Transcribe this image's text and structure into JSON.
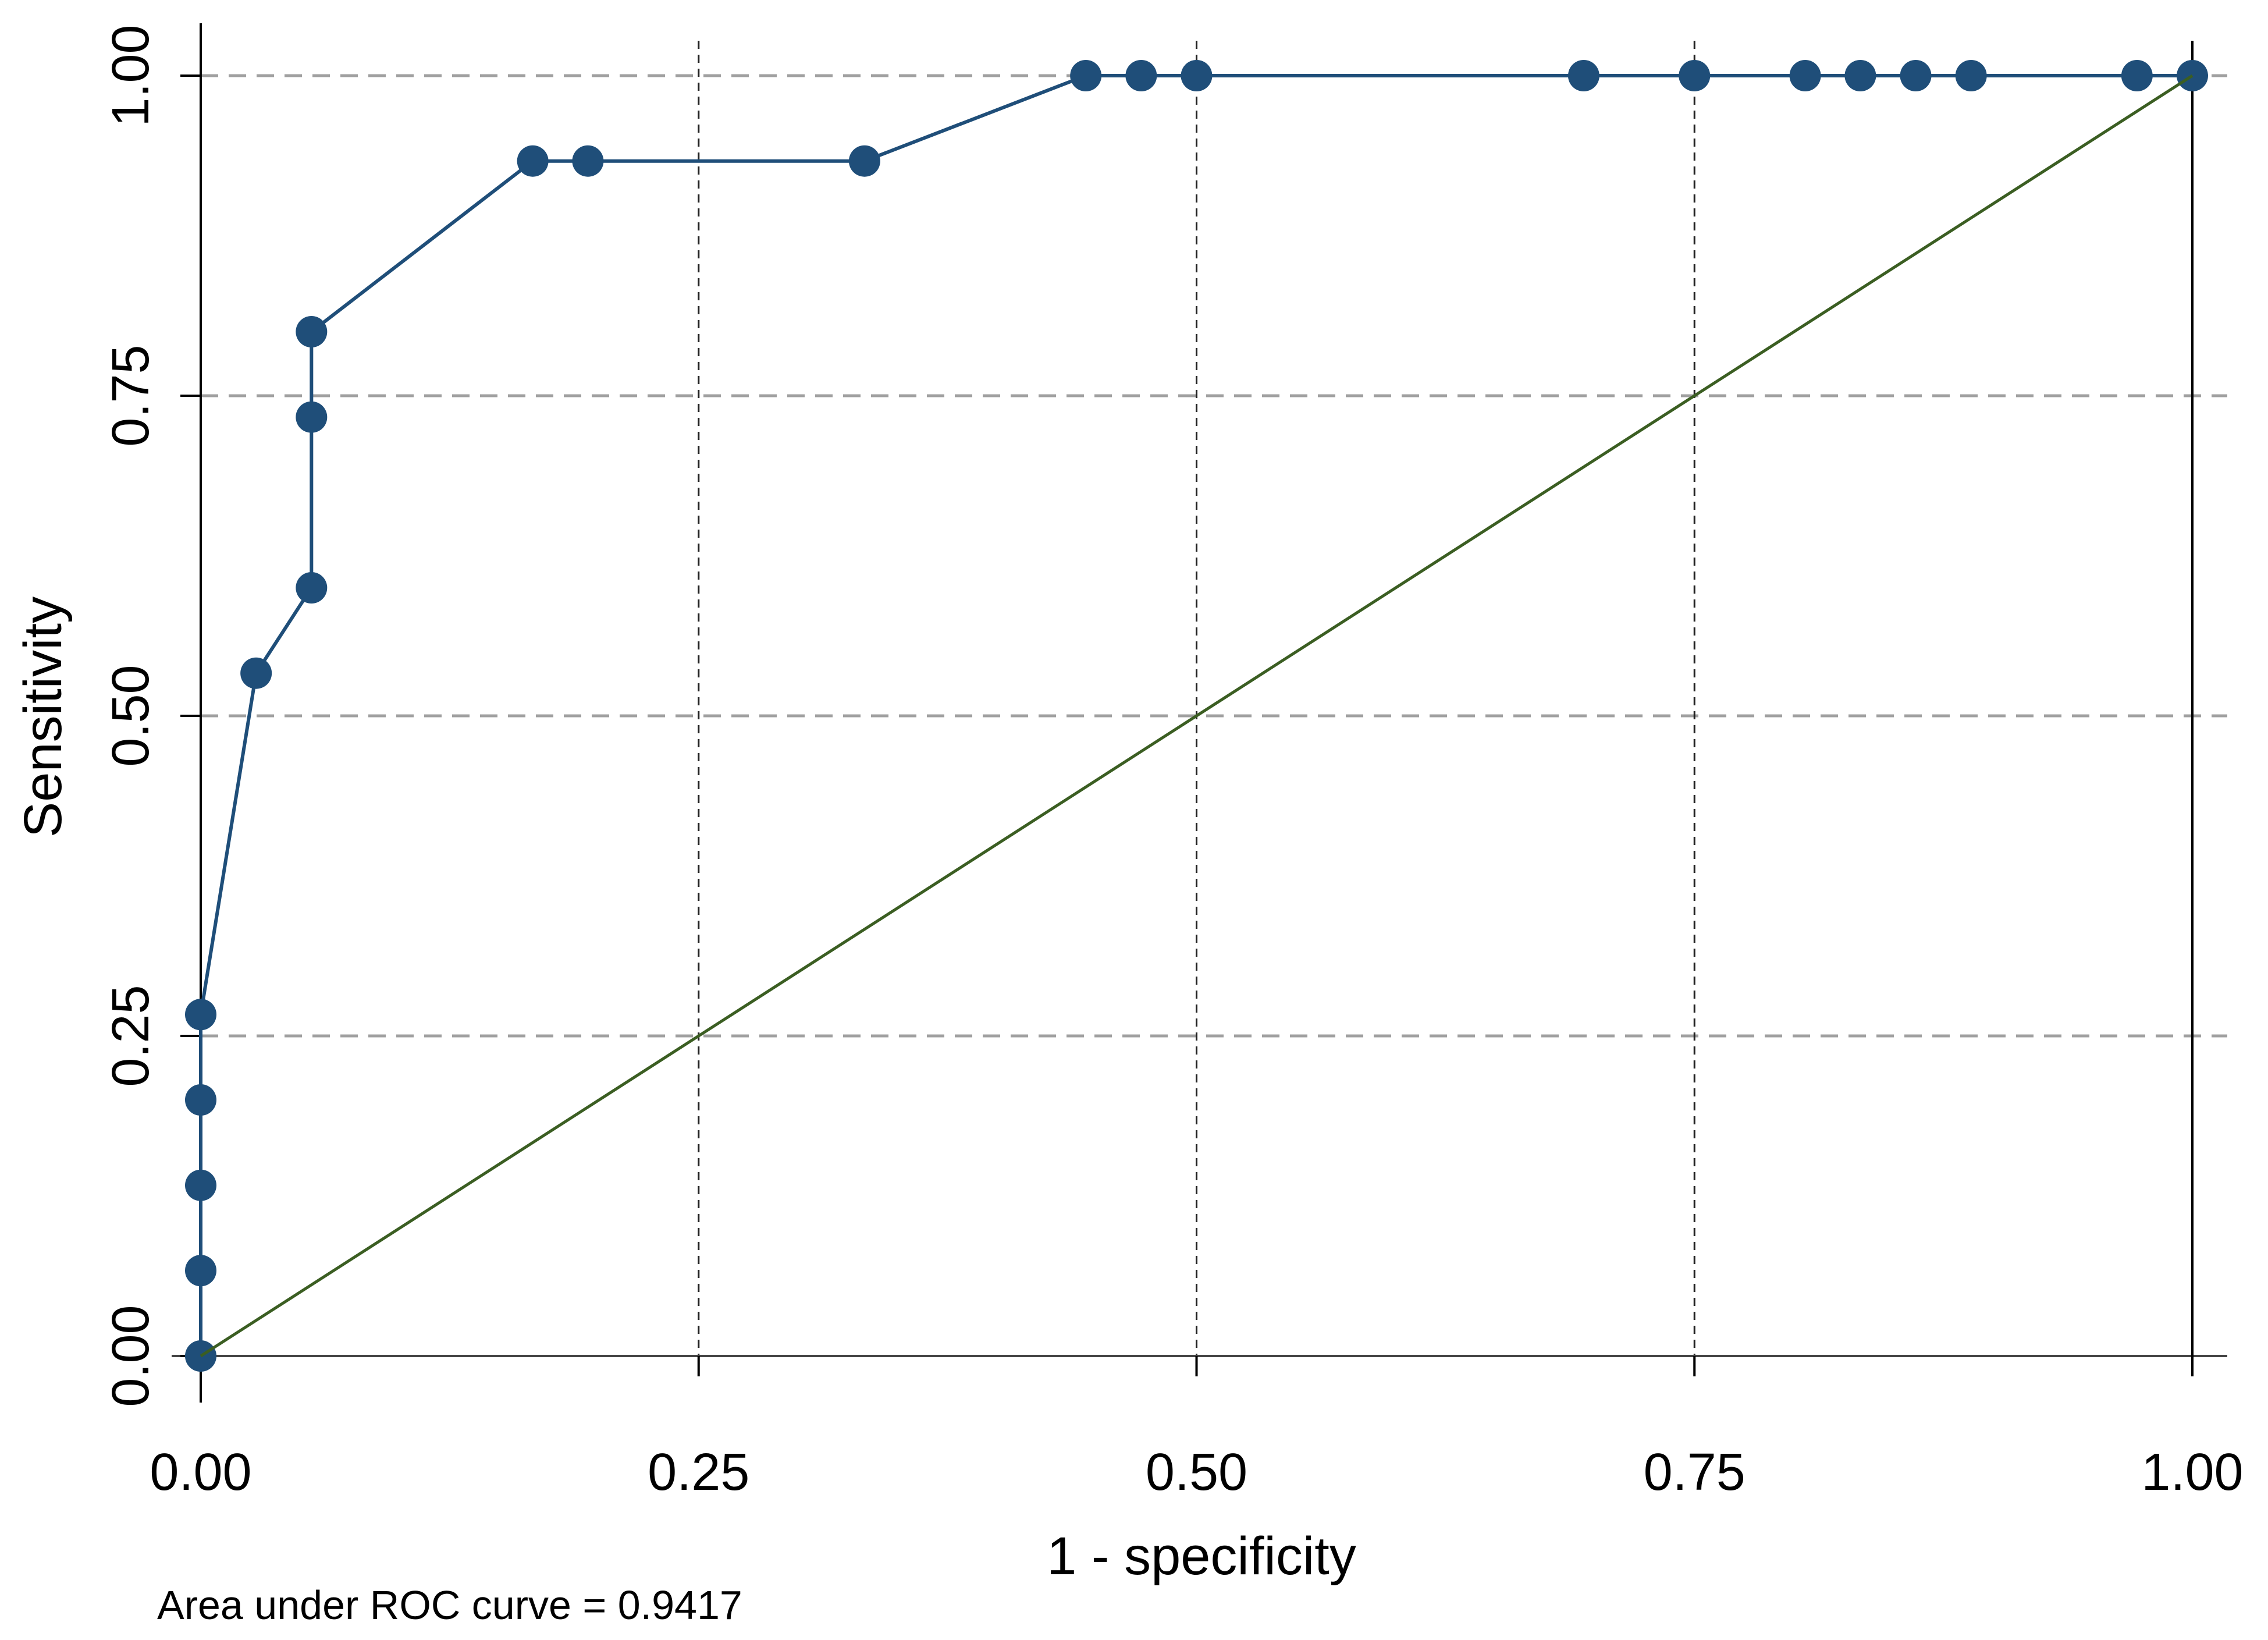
{
  "chart_data": {
    "type": "line",
    "xlabel": "1 - specificity",
    "ylabel": "Sensitivity",
    "xlim": [
      0,
      1
    ],
    "ylim": [
      0,
      1
    ],
    "xticks": [
      {
        "value": 0.0,
        "label": "0.00"
      },
      {
        "value": 0.25,
        "label": "0.25"
      },
      {
        "value": 0.5,
        "label": "0.50"
      },
      {
        "value": 0.75,
        "label": "0.75"
      },
      {
        "value": 1.0,
        "label": "1.00"
      }
    ],
    "yticks": [
      {
        "value": 0.0,
        "label": "0.00"
      },
      {
        "value": 0.25,
        "label": "0.25"
      },
      {
        "value": 0.5,
        "label": "0.50"
      },
      {
        "value": 0.75,
        "label": "0.75"
      },
      {
        "value": 1.0,
        "label": "1.00"
      }
    ],
    "x_grid": "vertical dashed lines at 0.25, 0.50, 0.75",
    "y_grid": "horizontal dashed lines at 0.25, 0.50, 0.75, 1.00",
    "series": [
      {
        "color": "#1f4e79",
        "marker": "circle",
        "points": [
          {
            "x": 0.0,
            "y": 0.0
          },
          {
            "x": 0.0,
            "y": 0.0667
          },
          {
            "x": 0.0,
            "y": 0.1333
          },
          {
            "x": 0.0,
            "y": 0.2
          },
          {
            "x": 0.0,
            "y": 0.2667
          },
          {
            "x": 0.0278,
            "y": 0.5333
          },
          {
            "x": 0.0556,
            "y": 0.6
          },
          {
            "x": 0.0556,
            "y": 0.7333
          },
          {
            "x": 0.0556,
            "y": 0.8
          },
          {
            "x": 0.1667,
            "y": 0.9333
          },
          {
            "x": 0.1944,
            "y": 0.9333
          },
          {
            "x": 0.3333,
            "y": 0.9333
          },
          {
            "x": 0.4444,
            "y": 1.0
          },
          {
            "x": 0.4722,
            "y": 1.0
          },
          {
            "x": 0.5,
            "y": 1.0
          },
          {
            "x": 0.6944,
            "y": 1.0
          },
          {
            "x": 0.75,
            "y": 1.0
          },
          {
            "x": 0.8056,
            "y": 1.0
          },
          {
            "x": 0.8333,
            "y": 1.0
          },
          {
            "x": 0.8611,
            "y": 1.0
          },
          {
            "x": 0.8889,
            "y": 1.0
          },
          {
            "x": 0.9722,
            "y": 1.0
          },
          {
            "x": 1.0,
            "y": 1.0
          }
        ]
      },
      {
        "color": "#3b5e22",
        "marker": "none",
        "points": [
          {
            "x": 0.0,
            "y": 0.0
          },
          {
            "x": 1.0,
            "y": 1.0
          }
        ]
      }
    ],
    "annotation": "Area under ROC curve = 0.9417"
  }
}
